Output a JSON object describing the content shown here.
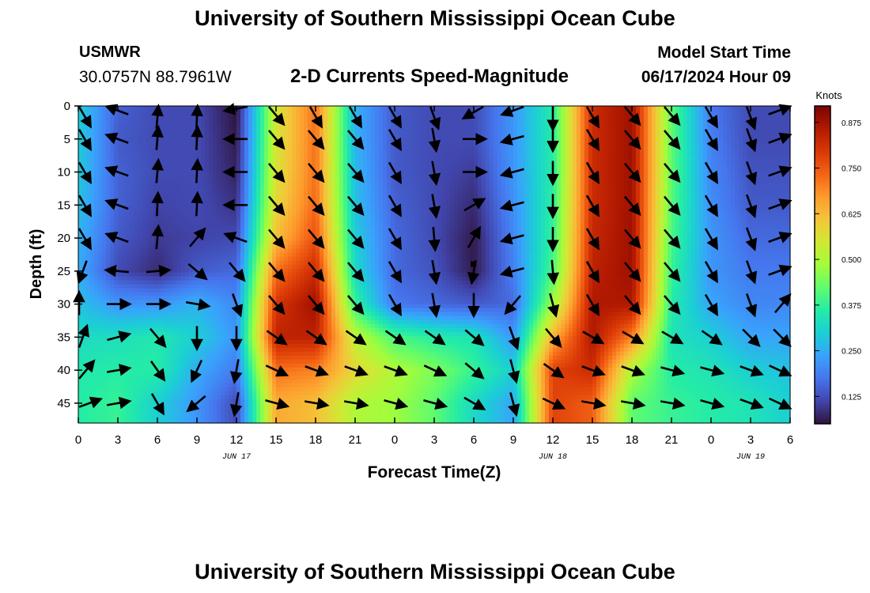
{
  "header": {
    "title": "University of Southern Mississippi Ocean Cube",
    "station": "USMWR",
    "coordinates": "30.0757N  88.7961W",
    "subtitle": "2-D Currents Speed-Magnitude",
    "model_start_label": "Model Start Time",
    "model_start_time": "06/17/2024 Hour 09"
  },
  "footer": {
    "title": "University of Southern Mississippi Ocean Cube"
  },
  "chart_data": {
    "type": "heatmap",
    "xlabel": "Forecast Time(Z)",
    "ylabel": "Depth (ft)",
    "x_tick_labels": [
      "0",
      "3",
      "6",
      "9",
      "12",
      "15",
      "18",
      "21",
      "0",
      "3",
      "6",
      "9",
      "12",
      "15",
      "18",
      "21",
      "0",
      "3",
      "6"
    ],
    "date_labels": [
      {
        "label": "JUN 17",
        "at_hour": 12
      },
      {
        "label": "JUN 18",
        "at_hour": 36
      },
      {
        "label": "JUN 19",
        "at_hour": 51
      }
    ],
    "xlim_hours": [
      0,
      54
    ],
    "y_ticks": [
      0,
      5,
      10,
      15,
      20,
      25,
      30,
      35,
      40,
      45
    ],
    "ylim": [
      0,
      48
    ],
    "colorbar": {
      "label": "Knots",
      "ticks": [
        "0.875",
        "0.750",
        "0.625",
        "0.500",
        "0.375",
        "0.250",
        "0.125"
      ],
      "tick_values": [
        0.875,
        0.75,
        0.625,
        0.5,
        0.375,
        0.25,
        0.125
      ],
      "range": [
        0.05,
        0.92
      ],
      "colormap": [
        "#30123b",
        "#4145ab",
        "#4675ed",
        "#39a2fc",
        "#1bcfd4",
        "#24eca6",
        "#61fc6c",
        "#a4fc3b",
        "#d1e834",
        "#f3c63a",
        "#fe9b2d",
        "#f36315",
        "#d93806",
        "#b11901",
        "#7a0402"
      ]
    },
    "speed_profiles": [
      {
        "hour": 0,
        "speed_knots": [
          0.3,
          0.3,
          0.29,
          0.28,
          0.26,
          0.25,
          0.28,
          0.32,
          0.35,
          0.36
        ]
      },
      {
        "hour": 3,
        "speed_knots": [
          0.15,
          0.14,
          0.15,
          0.15,
          0.14,
          0.12,
          0.22,
          0.33,
          0.36,
          0.38
        ]
      },
      {
        "hour": 6,
        "speed_knots": [
          0.12,
          0.12,
          0.12,
          0.11,
          0.1,
          0.08,
          0.22,
          0.35,
          0.36,
          0.3
        ]
      },
      {
        "hour": 9,
        "speed_knots": [
          0.12,
          0.12,
          0.12,
          0.12,
          0.11,
          0.14,
          0.26,
          0.3,
          0.25,
          0.22
        ]
      },
      {
        "hour": 12,
        "speed_knots": [
          0.05,
          0.06,
          0.07,
          0.09,
          0.12,
          0.16,
          0.2,
          0.22,
          0.18,
          0.12
        ]
      },
      {
        "hour": 15,
        "speed_knots": [
          0.55,
          0.55,
          0.56,
          0.58,
          0.62,
          0.72,
          0.8,
          0.84,
          0.72,
          0.65
        ]
      },
      {
        "hour": 18,
        "speed_knots": [
          0.72,
          0.72,
          0.72,
          0.73,
          0.76,
          0.82,
          0.88,
          0.84,
          0.7,
          0.62
        ]
      },
      {
        "hour": 21,
        "speed_knots": [
          0.26,
          0.26,
          0.27,
          0.28,
          0.3,
          0.32,
          0.38,
          0.52,
          0.58,
          0.5
        ]
      },
      {
        "hour": 24,
        "speed_knots": [
          0.14,
          0.14,
          0.14,
          0.15,
          0.16,
          0.16,
          0.18,
          0.4,
          0.5,
          0.48
        ]
      },
      {
        "hour": 27,
        "speed_knots": [
          0.12,
          0.12,
          0.12,
          0.12,
          0.12,
          0.13,
          0.16,
          0.36,
          0.45,
          0.42
        ]
      },
      {
        "hour": 30,
        "speed_knots": [
          0.12,
          0.12,
          0.1,
          0.08,
          0.06,
          0.06,
          0.14,
          0.34,
          0.38,
          0.32
        ]
      },
      {
        "hour": 33,
        "speed_knots": [
          0.22,
          0.22,
          0.22,
          0.21,
          0.2,
          0.19,
          0.16,
          0.22,
          0.3,
          0.24
        ]
      },
      {
        "hour": 36,
        "speed_knots": [
          0.36,
          0.36,
          0.36,
          0.37,
          0.38,
          0.4,
          0.48,
          0.64,
          0.78,
          0.78
        ]
      },
      {
        "hour": 39,
        "speed_knots": [
          0.82,
          0.82,
          0.82,
          0.82,
          0.83,
          0.84,
          0.86,
          0.86,
          0.82,
          0.74
        ]
      },
      {
        "hour": 42,
        "speed_knots": [
          0.88,
          0.88,
          0.88,
          0.88,
          0.88,
          0.88,
          0.86,
          0.7,
          0.5,
          0.42
        ]
      },
      {
        "hour": 45,
        "speed_knots": [
          0.42,
          0.42,
          0.42,
          0.41,
          0.4,
          0.38,
          0.36,
          0.34,
          0.36,
          0.38
        ]
      },
      {
        "hour": 48,
        "speed_knots": [
          0.18,
          0.19,
          0.2,
          0.21,
          0.22,
          0.22,
          0.24,
          0.3,
          0.34,
          0.36
        ]
      },
      {
        "hour": 51,
        "speed_knots": [
          0.12,
          0.12,
          0.13,
          0.14,
          0.16,
          0.18,
          0.2,
          0.24,
          0.3,
          0.34
        ]
      },
      {
        "hour": 54,
        "speed_knots": [
          0.12,
          0.12,
          0.13,
          0.14,
          0.16,
          0.18,
          0.2,
          0.24,
          0.28,
          0.3
        ]
      }
    ],
    "profile_depths_ft": [
      0,
      5,
      10,
      15,
      20,
      25,
      30,
      35,
      40,
      45
    ],
    "vectors": {
      "hours": [
        0,
        3,
        6,
        9,
        12,
        15,
        18,
        21,
        24,
        27,
        30,
        33,
        36,
        39,
        42,
        45,
        48,
        51,
        54
      ],
      "depths_ft": [
        0,
        5,
        10,
        15,
        20,
        25,
        30,
        35,
        40,
        45
      ],
      "direction_deg_rows": [
        [
          150,
          290,
          5,
          3,
          260,
          140,
          150,
          150,
          150,
          160,
          240,
          250,
          180,
          150,
          140,
          140,
          150,
          160,
          70
        ],
        [
          150,
          290,
          5,
          3,
          270,
          140,
          140,
          140,
          150,
          170,
          90,
          255,
          180,
          150,
          140,
          140,
          150,
          160,
          70
        ],
        [
          150,
          290,
          5,
          3,
          270,
          140,
          140,
          140,
          150,
          170,
          90,
          255,
          180,
          150,
          140,
          140,
          150,
          160,
          70
        ],
        [
          150,
          290,
          3,
          3,
          270,
          140,
          140,
          140,
          150,
          170,
          60,
          255,
          180,
          150,
          140,
          140,
          150,
          160,
          70
        ],
        [
          150,
          290,
          5,
          40,
          290,
          140,
          140,
          140,
          150,
          175,
          30,
          255,
          180,
          150,
          140,
          140,
          150,
          160,
          70
        ],
        [
          200,
          275,
          85,
          130,
          140,
          140,
          140,
          140,
          150,
          170,
          190,
          255,
          175,
          150,
          140,
          140,
          150,
          160,
          70
        ],
        [
          0,
          90,
          90,
          100,
          160,
          140,
          140,
          140,
          150,
          170,
          180,
          220,
          165,
          150,
          140,
          140,
          150,
          160,
          40
        ],
        [
          20,
          75,
          140,
          180,
          180,
          125,
          125,
          125,
          125,
          125,
          130,
          160,
          140,
          120,
          120,
          120,
          125,
          135,
          135
        ],
        [
          40,
          80,
          145,
          205,
          190,
          115,
          110,
          110,
          110,
          115,
          130,
          165,
          125,
          110,
          110,
          105,
          105,
          110,
          115
        ],
        [
          70,
          80,
          150,
          230,
          190,
          105,
          100,
          100,
          105,
          105,
          120,
          165,
          115,
          100,
          100,
          100,
          105,
          110,
          115
        ]
      ]
    },
    "marker": {
      "hour": 30,
      "depth_ft": 24
    }
  }
}
